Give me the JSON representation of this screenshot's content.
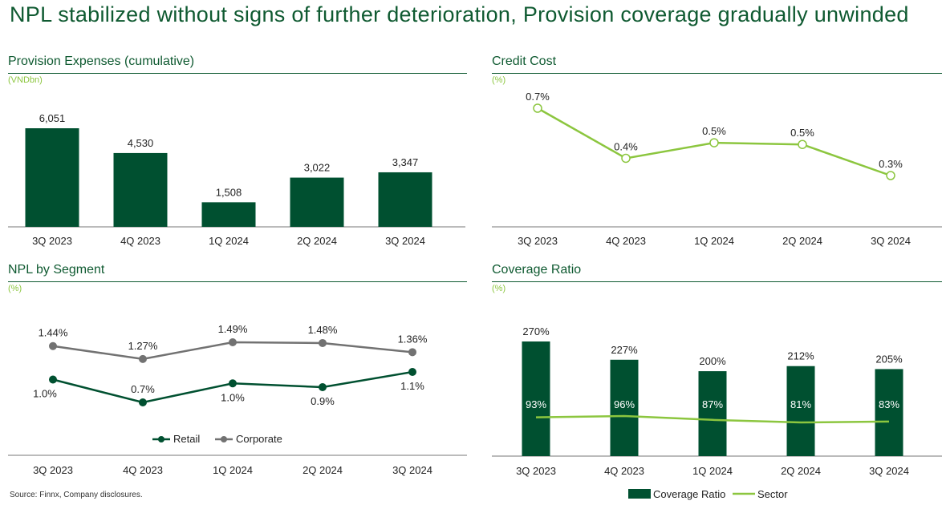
{
  "title": "NPL stabilized without signs of further deterioration, Provision coverage gradually unwinded",
  "source": "Source: Finnx, Company disclosures.",
  "colors": {
    "dark_green": "#005030",
    "light_green": "#8cc63f",
    "gray": "#727272",
    "title_green": "#0f5a31"
  },
  "chart_data": [
    {
      "id": "provision",
      "type": "bar",
      "title": "Provision Expenses (cumulative)",
      "unit": "(VNDbn)",
      "categories": [
        "3Q 2023",
        "4Q 2023",
        "1Q 2024",
        "2Q 2024",
        "3Q 2024"
      ],
      "values": [
        6051,
        4530,
        1508,
        3022,
        3347
      ],
      "labels": [
        "6,051",
        "4,530",
        "1,508",
        "3,022",
        "3,347"
      ],
      "ylim": [
        0,
        6051
      ]
    },
    {
      "id": "creditcost",
      "type": "line",
      "title": "Credit Cost",
      "unit": "(%)",
      "categories": [
        "3Q 2023",
        "4Q 2023",
        "1Q 2024",
        "2Q 2024",
        "3Q 2024"
      ],
      "values": [
        0.69,
        0.4,
        0.49,
        0.48,
        0.3
      ],
      "labels": [
        "0.7%",
        "0.4%",
        "0.5%",
        "0.5%",
        "0.3%"
      ],
      "ylim": [
        0,
        0.7
      ]
    },
    {
      "id": "npl",
      "type": "line",
      "title": "NPL by Segment",
      "unit": "(%)",
      "categories": [
        "3Q 2023",
        "4Q 2023",
        "1Q 2024",
        "2Q 2024",
        "3Q 2024"
      ],
      "series": [
        {
          "name": "Retail",
          "values": [
            1.0,
            0.7,
            0.95,
            0.9,
            1.1
          ],
          "labels": [
            "1.0%",
            "0.7%",
            "1.0%",
            "0.9%",
            "1.1%"
          ]
        },
        {
          "name": "Corporate",
          "values": [
            1.44,
            1.27,
            1.49,
            1.48,
            1.36
          ],
          "labels": [
            "1.44%",
            "1.27%",
            "1.49%",
            "1.48%",
            "1.36%"
          ]
        }
      ],
      "legend": [
        "Retail",
        "Corporate"
      ],
      "ylim": [
        0,
        1.5
      ]
    },
    {
      "id": "coverage",
      "type": "bar",
      "title": "Coverage Ratio",
      "unit": "(%)",
      "categories": [
        "3Q 2023",
        "4Q 2023",
        "1Q 2024",
        "2Q 2024",
        "3Q 2024"
      ],
      "series": [
        {
          "name": "Coverage Ratio",
          "type": "bar",
          "values": [
            270,
            227,
            200,
            212,
            205
          ],
          "labels": [
            "270%",
            "227%",
            "200%",
            "212%",
            "205%"
          ]
        },
        {
          "name": "Sector",
          "type": "line",
          "values": [
            93,
            96,
            87,
            81,
            83
          ],
          "labels": [
            "93%",
            "96%",
            "87%",
            "81%",
            "83%"
          ]
        }
      ],
      "legend": [
        "Coverage Ratio",
        "Sector"
      ],
      "ylim": [
        0,
        270
      ]
    }
  ]
}
